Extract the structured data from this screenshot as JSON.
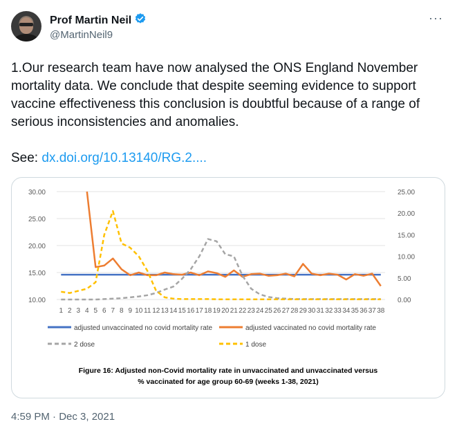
{
  "author": {
    "name": "Prof Martin Neil",
    "handle": "@MartinNeil9",
    "verified": true
  },
  "tweet": {
    "text": "1.Our research team have now analysed the ONS England November mortality data. We conclude that despite seeming evidence to support vaccine effectiveness this conclusion is doubtful because of a range of serious inconsistencies and anomalies.",
    "see_label": "See:",
    "link_text": "dx.doi.org/10.13140/RG.2....",
    "timestamp": "4:59 PM · Dec 3, 2021"
  },
  "icons": {
    "more": "more-options-icon",
    "verified": "verified-badge-icon"
  },
  "colors": {
    "link": "#1d9bf0",
    "verified": "#1d9bf0",
    "unvaccinated": "#4472c4",
    "vaccinated": "#ed7d31",
    "dose2": "#a5a5a5",
    "dose1": "#ffc000"
  },
  "chart_data": {
    "type": "line",
    "caption": "Figure 16: Adjusted non-Covid mortality rate in unvaccinated and unvaccinated versus % vaccinated for age group 60-69 (weeks 1-38, 2021)",
    "x": [
      1,
      2,
      3,
      4,
      5,
      6,
      7,
      8,
      9,
      10,
      11,
      12,
      13,
      14,
      15,
      16,
      17,
      18,
      19,
      20,
      21,
      22,
      23,
      24,
      25,
      26,
      27,
      28,
      29,
      30,
      31,
      32,
      33,
      34,
      35,
      36,
      37,
      38
    ],
    "left_axis": {
      "ylim": [
        10,
        30
      ],
      "ticks": [
        "10.00",
        "15.00",
        "20.00",
        "25.00",
        "30.00"
      ]
    },
    "right_axis": {
      "ylim": [
        0,
        25
      ],
      "ticks": [
        "0.00",
        "5.00",
        "10.00",
        "15.00",
        "20.00",
        "25.00"
      ]
    },
    "grid": true,
    "legend_position": "bottom",
    "series": [
      {
        "name": "adjusted unvaccinated no covid mortality rate",
        "axis": "left",
        "style": "solid",
        "color": "#4472c4",
        "values": [
          14.6,
          14.6,
          14.6,
          14.6,
          14.6,
          14.6,
          14.6,
          14.6,
          14.6,
          14.6,
          14.6,
          14.6,
          14.6,
          14.6,
          14.6,
          14.6,
          14.6,
          14.6,
          14.6,
          14.6,
          14.6,
          14.6,
          14.6,
          14.6,
          14.6,
          14.6,
          14.6,
          14.6,
          14.6,
          14.6,
          14.6,
          14.6,
          14.6,
          14.6,
          14.6,
          14.6,
          14.6,
          14.6
        ]
      },
      {
        "name": "adjusted vaccinated no covid mortality rate",
        "axis": "left",
        "style": "solid",
        "color": "#ed7d31",
        "values": [
          null,
          null,
          null,
          30,
          16,
          16.3,
          17.6,
          15.6,
          14.5,
          15,
          14.5,
          14.5,
          15,
          14.7,
          14.6,
          15.0,
          14.5,
          15.2,
          14.9,
          14.2,
          15.4,
          14.2,
          14.7,
          14.8,
          14.4,
          14.5,
          14.8,
          14.3,
          16.6,
          14.8,
          14.5,
          14.8,
          14.6,
          13.7,
          14.7,
          14.4,
          14.8,
          12.5
        ]
      },
      {
        "name": "2 dose",
        "axis": "right",
        "style": "dashed",
        "color": "#a5a5a5",
        "values": [
          0,
          0,
          0,
          0,
          0,
          0.1,
          0.2,
          0.3,
          0.5,
          0.7,
          1.0,
          1.5,
          2.3,
          3.0,
          4.8,
          7.0,
          10.0,
          14.0,
          13.5,
          10.5,
          10,
          5.5,
          2.5,
          1.2,
          0.6,
          0.3,
          0.2,
          0.1,
          0.1,
          0.1,
          0.1,
          0.1,
          0.1,
          0.1,
          0.1,
          0.1,
          0.1,
          0.1
        ]
      },
      {
        "name": "1 dose",
        "axis": "right",
        "style": "dashed",
        "color": "#ffc000",
        "values": [
          1.8,
          1.5,
          2,
          2.5,
          4,
          15,
          20.5,
          13,
          12,
          10,
          6.6,
          2,
          0.5,
          0.2,
          0.1,
          0.1,
          0.1,
          0.1,
          0.05,
          0.05,
          0.05,
          0.05,
          0.05,
          0.05,
          0.05,
          0.05,
          0.05,
          0.05,
          0.05,
          0.05,
          0.05,
          0.05,
          0.05,
          0.05,
          0.05,
          0.05,
          0.05,
          0.05
        ]
      }
    ]
  }
}
